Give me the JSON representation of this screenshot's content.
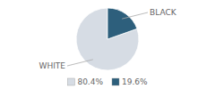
{
  "chart_data": {
    "type": "pie",
    "categories": [
      "80.4%",
      "19.6%"
    ],
    "values": [
      80.4,
      19.6
    ],
    "colors": [
      "#d6dce4",
      "#2d5f7c"
    ],
    "annotations": [
      "WHITE",
      "BLACK"
    ],
    "legend": "bottom"
  }
}
